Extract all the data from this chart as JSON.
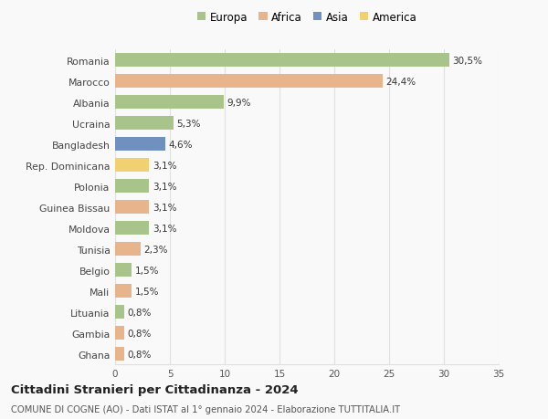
{
  "countries": [
    "Romania",
    "Marocco",
    "Albania",
    "Ucraina",
    "Bangladesh",
    "Rep. Dominicana",
    "Polonia",
    "Guinea Bissau",
    "Moldova",
    "Tunisia",
    "Belgio",
    "Mali",
    "Lituania",
    "Gambia",
    "Ghana"
  ],
  "values": [
    30.5,
    24.4,
    9.9,
    5.3,
    4.6,
    3.1,
    3.1,
    3.1,
    3.1,
    2.3,
    1.5,
    1.5,
    0.8,
    0.8,
    0.8
  ],
  "labels": [
    "30,5%",
    "24,4%",
    "9,9%",
    "5,3%",
    "4,6%",
    "3,1%",
    "3,1%",
    "3,1%",
    "3,1%",
    "2,3%",
    "1,5%",
    "1,5%",
    "0,8%",
    "0,8%",
    "0,8%"
  ],
  "continents": [
    "Europa",
    "Africa",
    "Europa",
    "Europa",
    "Asia",
    "America",
    "Europa",
    "Africa",
    "Europa",
    "Africa",
    "Europa",
    "Africa",
    "Europa",
    "Africa",
    "Africa"
  ],
  "colors": {
    "Europa": "#a8c48a",
    "Africa": "#e8b48c",
    "Asia": "#7090c0",
    "America": "#f0d070"
  },
  "xlim": [
    0,
    35
  ],
  "xticks": [
    0,
    5,
    10,
    15,
    20,
    25,
    30,
    35
  ],
  "title": "Cittadini Stranieri per Cittadinanza - 2024",
  "subtitle": "COMUNE DI COGNE (AO) - Dati ISTAT al 1° gennaio 2024 - Elaborazione TUTTITALIA.IT",
  "background_color": "#f9f9f9",
  "grid_color": "#e0e0e0",
  "bar_height": 0.65,
  "legend_order": [
    "Europa",
    "Africa",
    "Asia",
    "America"
  ]
}
